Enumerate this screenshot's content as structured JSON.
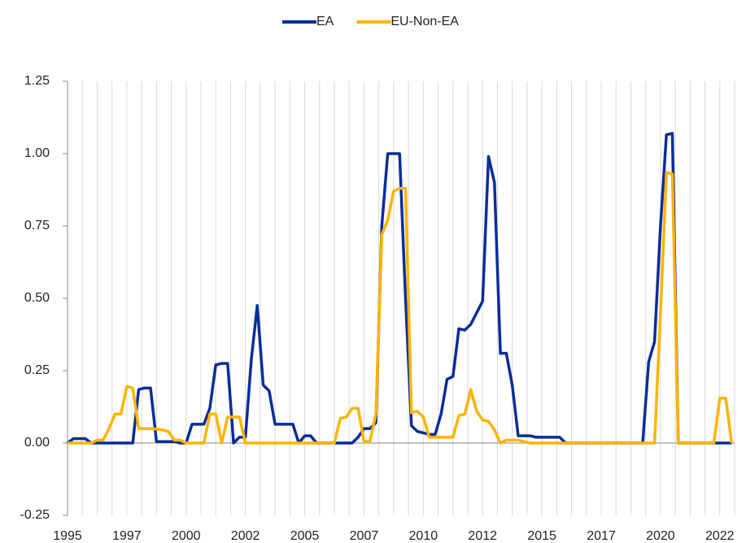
{
  "chart_data": {
    "type": "line",
    "categories": [
      "1995",
      null,
      null,
      null,
      null,
      null,
      null,
      null,
      null,
      null,
      "1997",
      null,
      null,
      null,
      null,
      null,
      null,
      null,
      null,
      null,
      "2000",
      null,
      null,
      null,
      null,
      null,
      null,
      null,
      null,
      null,
      "2002",
      null,
      null,
      null,
      null,
      null,
      null,
      null,
      null,
      null,
      "2005",
      null,
      null,
      null,
      null,
      null,
      null,
      null,
      null,
      null,
      "2007",
      null,
      null,
      null,
      null,
      null,
      null,
      null,
      null,
      null,
      "2010",
      null,
      null,
      null,
      null,
      null,
      null,
      null,
      null,
      null,
      "2012",
      null,
      null,
      null,
      null,
      null,
      null,
      null,
      null,
      null,
      "2015",
      null,
      null,
      null,
      null,
      null,
      null,
      null,
      null,
      null,
      "2017",
      null,
      null,
      null,
      null,
      null,
      null,
      null,
      null,
      null,
      "2020",
      null,
      null,
      null,
      null,
      null,
      null,
      null,
      null,
      null,
      "2022",
      null,
      null
    ],
    "series": [
      {
        "name": "EA",
        "color": "#0a2d9a",
        "values": [
          0,
          0.015,
          0.015,
          0.015,
          0,
          0,
          0,
          0,
          0,
          0,
          0,
          0,
          0.185,
          0.19,
          0.19,
          0.005,
          0.005,
          0.005,
          0.005,
          0,
          0,
          0.065,
          0.065,
          0.065,
          0.12,
          0.27,
          0.275,
          0.275,
          0,
          0.02,
          0.02,
          0.29,
          0.475,
          0.2,
          0.18,
          0.065,
          0.065,
          0.065,
          0.065,
          0,
          0.025,
          0.025,
          0,
          0,
          0,
          0,
          0,
          0,
          0,
          0.02,
          0.05,
          0.05,
          0.07,
          0.75,
          1.0,
          1.0,
          1.0,
          0.5,
          0.06,
          0.04,
          0.035,
          0.03,
          0.03,
          0.1,
          0.22,
          0.23,
          0.395,
          0.39,
          0.41,
          0.45,
          0.49,
          0.99,
          0.9,
          0.31,
          0.31,
          0.2,
          0.025,
          0.025,
          0.025,
          0.02,
          0.02,
          0.02,
          0.02,
          0.02,
          0,
          0,
          0,
          0,
          0,
          0,
          0,
          0,
          0,
          0,
          0,
          0,
          0,
          0,
          0.28,
          0.35,
          0.75,
          1.065,
          1.07,
          0,
          0,
          0,
          0,
          0,
          0,
          0,
          0,
          0,
          0
        ]
      },
      {
        "name": "EU-Non-EA",
        "color": "#ffb400",
        "values": [
          0,
          0,
          0,
          0,
          0,
          0.01,
          0.01,
          0.05,
          0.1,
          0.1,
          0.195,
          0.19,
          0.05,
          0.05,
          0.05,
          0.048,
          0.045,
          0.04,
          0.01,
          0.01,
          0,
          0,
          0,
          0,
          0.1,
          0.1,
          0,
          0.09,
          0.09,
          0.09,
          0,
          0,
          0,
          0,
          0,
          0,
          0,
          0,
          0,
          0,
          0,
          0,
          0,
          0,
          0,
          0,
          0.085,
          0.09,
          0.12,
          0.12,
          0.005,
          0.005,
          0.1,
          0.72,
          0.77,
          0.87,
          0.88,
          0.88,
          0.105,
          0.11,
          0.09,
          0.02,
          0.02,
          0.02,
          0.02,
          0.02,
          0.095,
          0.1,
          0.185,
          0.11,
          0.08,
          0.075,
          0.045,
          0,
          0.01,
          0.01,
          0.01,
          0.005,
          0,
          0,
          0,
          0,
          0,
          0,
          0,
          0,
          0,
          0,
          0,
          0,
          0,
          0,
          0,
          0,
          0,
          0,
          0,
          0,
          0,
          0,
          0.45,
          0.935,
          0.93,
          0,
          0,
          0,
          0,
          0,
          0,
          0,
          0.155,
          0.155,
          0
        ]
      }
    ],
    "ylim": [
      -0.25,
      1.25
    ],
    "yticks": [
      -0.25,
      {
        "value": 0,
        "label": "0.00"
      },
      0.25,
      {
        "value": 0.5,
        "label": "0.50"
      },
      0.75,
      {
        "value": 1,
        "label": "1.00"
      },
      1.25
    ],
    "legend": "top"
  }
}
